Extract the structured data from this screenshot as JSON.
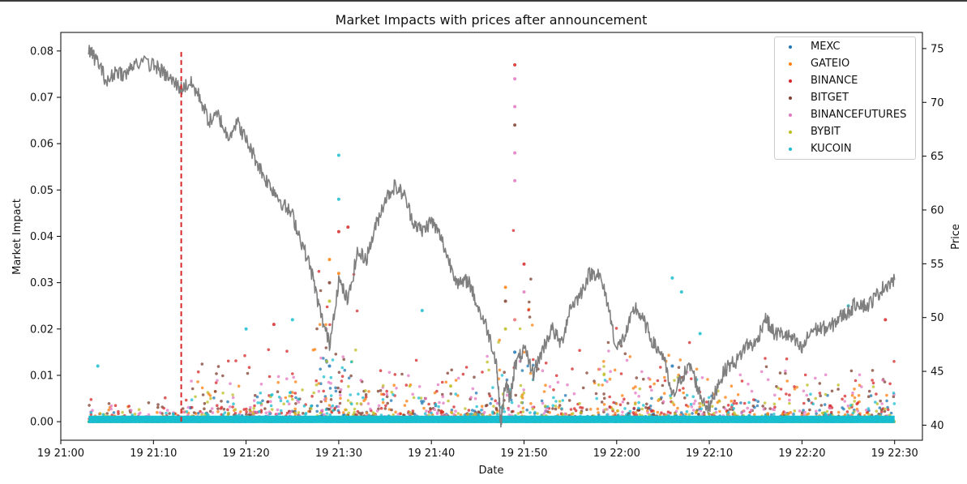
{
  "chart_data": {
    "type": "scatter",
    "title": "Market Impacts with prices after announcement",
    "xlabel": "Date",
    "ylabel": "Market Impact",
    "y2label": "Price",
    "x_range": [
      "21:00",
      "22:33"
    ],
    "ylim": [
      -0.004,
      0.084
    ],
    "y2lim": [
      38.6,
      76.5
    ],
    "x_ticks": [
      "19 21:00",
      "19 21:10",
      "19 21:20",
      "19 21:30",
      "19 21:40",
      "19 21:50",
      "19 22:00",
      "19 22:10",
      "19 22:20",
      "19 22:30"
    ],
    "y_ticks": [
      "0.00",
      "0.01",
      "0.02",
      "0.03",
      "0.04",
      "0.05",
      "0.06",
      "0.07",
      "0.08"
    ],
    "y2_ticks": [
      "40",
      "45",
      "50",
      "55",
      "60",
      "65",
      "70",
      "75"
    ],
    "legend_position": "top-right",
    "grid": false,
    "announcement_line": {
      "time": "21:13",
      "y_from": 0.0,
      "y_to": 0.08,
      "color": "#d62728",
      "style": "dashed"
    },
    "series": [
      {
        "name": "MEXC",
        "color": "#1f77b4",
        "axis": "left",
        "typical_max": 0.004,
        "notable_points": [
          {
            "t": "21:14",
            "y": 0.003
          },
          {
            "t": "21:29",
            "y": 0.012
          },
          {
            "t": "21:49",
            "y": 0.015
          },
          {
            "t": "22:06",
            "y": 0.012
          }
        ]
      },
      {
        "name": "GATEIO",
        "color": "#ff7f0e",
        "axis": "left",
        "typical_max": 0.006,
        "notable_points": [
          {
            "t": "21:29",
            "y": 0.035
          },
          {
            "t": "21:30",
            "y": 0.032
          },
          {
            "t": "21:48",
            "y": 0.029
          },
          {
            "t": "21:49",
            "y": 0.022
          }
        ]
      },
      {
        "name": "BINANCE",
        "color": "#d62728",
        "axis": "left",
        "typical_max": 0.01,
        "notable_points": [
          {
            "t": "21:23",
            "y": 0.021
          },
          {
            "t": "21:30",
            "y": 0.041
          },
          {
            "t": "21:31",
            "y": 0.042
          },
          {
            "t": "21:49",
            "y": 0.077
          },
          {
            "t": "21:50",
            "y": 0.034
          },
          {
            "t": "22:29",
            "y": 0.022
          }
        ]
      },
      {
        "name": "BITGET",
        "color": "#7f3f2f",
        "axis": "left",
        "typical_max": 0.008,
        "notable_points": [
          {
            "t": "21:29",
            "y": 0.03
          },
          {
            "t": "21:49",
            "y": 0.064
          },
          {
            "t": "21:48",
            "y": 0.026
          }
        ]
      },
      {
        "name": "BINANCEFUTURES",
        "color": "#e377c2",
        "axis": "left",
        "typical_max": 0.007,
        "notable_points": [
          {
            "t": "21:49",
            "y": 0.074
          },
          {
            "t": "21:49",
            "y": 0.068
          },
          {
            "t": "21:49",
            "y": 0.058
          },
          {
            "t": "21:49",
            "y": 0.052
          },
          {
            "t": "21:50",
            "y": 0.028
          }
        ]
      },
      {
        "name": "BYBIT",
        "color": "#bcbd22",
        "axis": "left",
        "typical_max": 0.005,
        "notable_points": [
          {
            "t": "21:29",
            "y": 0.026
          },
          {
            "t": "21:48",
            "y": 0.02
          }
        ]
      },
      {
        "name": "KUCOIN",
        "color": "#17becf",
        "axis": "left",
        "typical_max": 0.004,
        "notable_points": [
          {
            "t": "21:04",
            "y": 0.012
          },
          {
            "t": "21:20",
            "y": 0.02
          },
          {
            "t": "21:25",
            "y": 0.022
          },
          {
            "t": "21:30",
            "y": 0.0575
          },
          {
            "t": "21:30",
            "y": 0.048
          },
          {
            "t": "21:39",
            "y": 0.024
          },
          {
            "t": "22:06",
            "y": 0.031
          },
          {
            "t": "22:07",
            "y": 0.028
          },
          {
            "t": "22:09",
            "y": 0.019
          },
          {
            "t": "22:25",
            "y": 0.025
          }
        ]
      }
    ],
    "price_series": {
      "name": "Price",
      "color": "#7f7f7f",
      "axis": "right",
      "points": [
        {
          "t": "21:03:00",
          "p": 74.8
        },
        {
          "t": "21:04:00",
          "p": 73.8
        },
        {
          "t": "21:05:00",
          "p": 71.8
        },
        {
          "t": "21:06:00",
          "p": 73.0
        },
        {
          "t": "21:07:00",
          "p": 72.5
        },
        {
          "t": "21:08:00",
          "p": 73.8
        },
        {
          "t": "21:10:00",
          "p": 73.5
        },
        {
          "t": "21:11:00",
          "p": 72.8
        },
        {
          "t": "21:12:00",
          "p": 72.0
        },
        {
          "t": "21:13:00",
          "p": 71.3
        },
        {
          "t": "21:14:00",
          "p": 71.8
        },
        {
          "t": "21:15:00",
          "p": 70.5
        },
        {
          "t": "21:16:00",
          "p": 68.2
        },
        {
          "t": "21:17:00",
          "p": 68.8
        },
        {
          "t": "21:18:00",
          "p": 66.8
        },
        {
          "t": "21:19:00",
          "p": 68.2
        },
        {
          "t": "21:20:00",
          "p": 66.5
        },
        {
          "t": "21:21:00",
          "p": 64.8
        },
        {
          "t": "21:22:00",
          "p": 63.0
        },
        {
          "t": "21:23:00",
          "p": 61.8
        },
        {
          "t": "21:24:00",
          "p": 60.5
        },
        {
          "t": "21:25:00",
          "p": 59.5
        },
        {
          "t": "21:26:00",
          "p": 57.0
        },
        {
          "t": "21:27:00",
          "p": 54.5
        },
        {
          "t": "21:28:00",
          "p": 50.5
        },
        {
          "t": "21:29:00",
          "p": 47.5
        },
        {
          "t": "21:30:00",
          "p": 53.5
        },
        {
          "t": "21:31:00",
          "p": 51.5
        },
        {
          "t": "21:32:00",
          "p": 56.0
        },
        {
          "t": "21:33:00",
          "p": 55.5
        },
        {
          "t": "21:34:00",
          "p": 58.5
        },
        {
          "t": "21:35:00",
          "p": 61.0
        },
        {
          "t": "21:36:00",
          "p": 62.2
        },
        {
          "t": "21:37:00",
          "p": 61.5
        },
        {
          "t": "21:38:00",
          "p": 59.0
        },
        {
          "t": "21:39:00",
          "p": 58.0
        },
        {
          "t": "21:40:00",
          "p": 59.0
        },
        {
          "t": "21:41:00",
          "p": 57.5
        },
        {
          "t": "21:42:00",
          "p": 55.0
        },
        {
          "t": "21:43:00",
          "p": 53.0
        },
        {
          "t": "21:44:00",
          "p": 53.5
        },
        {
          "t": "21:45:00",
          "p": 51.0
        },
        {
          "t": "21:46:00",
          "p": 49.0
        },
        {
          "t": "21:47:00",
          "p": 46.0
        },
        {
          "t": "21:47:30",
          "p": 40.2
        },
        {
          "t": "21:48:00",
          "p": 44.0
        },
        {
          "t": "21:48:30",
          "p": 42.5
        },
        {
          "t": "21:49:00",
          "p": 45.5
        },
        {
          "t": "21:50:00",
          "p": 47.0
        },
        {
          "t": "21:51:00",
          "p": 44.8
        },
        {
          "t": "21:52:00",
          "p": 47.0
        },
        {
          "t": "21:53:00",
          "p": 49.0
        },
        {
          "t": "21:54:00",
          "p": 47.5
        },
        {
          "t": "21:55:00",
          "p": 51.0
        },
        {
          "t": "21:56:00",
          "p": 52.0
        },
        {
          "t": "21:57:00",
          "p": 54.0
        },
        {
          "t": "21:58:00",
          "p": 54.2
        },
        {
          "t": "21:59:00",
          "p": 51.5
        },
        {
          "t": "22:00:00",
          "p": 47.0
        },
        {
          "t": "22:01:00",
          "p": 48.5
        },
        {
          "t": "22:02:00",
          "p": 51.0
        },
        {
          "t": "22:03:00",
          "p": 49.5
        },
        {
          "t": "22:04:00",
          "p": 47.5
        },
        {
          "t": "22:05:00",
          "p": 46.5
        },
        {
          "t": "22:06:00",
          "p": 42.5
        },
        {
          "t": "22:07:00",
          "p": 44.5
        },
        {
          "t": "22:08:00",
          "p": 45.5
        },
        {
          "t": "22:09:00",
          "p": 42.8
        },
        {
          "t": "22:10:00",
          "p": 41.5
        },
        {
          "t": "22:11:00",
          "p": 44.0
        },
        {
          "t": "22:12:00",
          "p": 45.5
        },
        {
          "t": "22:13:00",
          "p": 46.0
        },
        {
          "t": "22:14:00",
          "p": 47.5
        },
        {
          "t": "22:15:00",
          "p": 47.5
        },
        {
          "t": "22:16:00",
          "p": 50.0
        },
        {
          "t": "22:17:00",
          "p": 48.5
        },
        {
          "t": "22:18:00",
          "p": 48.5
        },
        {
          "t": "22:19:00",
          "p": 48.0
        },
        {
          "t": "22:20:00",
          "p": 47.0
        },
        {
          "t": "22:21:00",
          "p": 48.8
        },
        {
          "t": "22:22:00",
          "p": 49.0
        },
        {
          "t": "22:23:00",
          "p": 49.0
        },
        {
          "t": "22:24:00",
          "p": 50.0
        },
        {
          "t": "22:25:00",
          "p": 50.5
        },
        {
          "t": "22:26:00",
          "p": 51.5
        },
        {
          "t": "22:27:00",
          "p": 51.0
        },
        {
          "t": "22:28:00",
          "p": 52.0
        },
        {
          "t": "22:29:00",
          "p": 53.0
        },
        {
          "t": "22:30:00",
          "p": 53.5
        }
      ]
    }
  }
}
